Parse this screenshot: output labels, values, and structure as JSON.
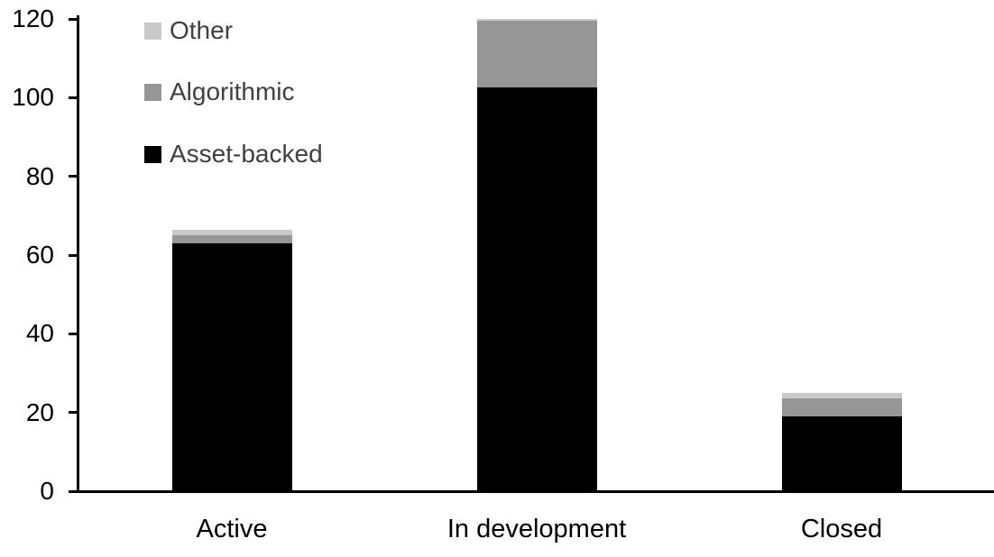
{
  "chart_data": {
    "type": "bar",
    "stacked": true,
    "categories": [
      "Active",
      "In development",
      "Closed"
    ],
    "series": [
      {
        "name": "Asset-backed",
        "color": "#000000",
        "values": [
          63,
          102.5,
          19
        ]
      },
      {
        "name": "Algorithmic",
        "color": "#969696",
        "values": [
          2,
          17,
          4.5
        ]
      },
      {
        "name": "Other",
        "color": "#c9c9c9",
        "values": [
          1.5,
          0.5,
          1.5
        ]
      }
    ],
    "title": "",
    "xlabel": "",
    "ylabel": "",
    "ylim": [
      0,
      120
    ],
    "yticks": [
      0,
      20,
      40,
      60,
      80,
      100,
      120
    ],
    "grid": false,
    "legend_position": "top-left",
    "legend_order_top_to_bottom": [
      "Other",
      "Algorithmic",
      "Asset-backed"
    ]
  },
  "legend": {
    "items": [
      {
        "label": "Other",
        "swatch_color": "#c9c9c9"
      },
      {
        "label": "Algorithmic",
        "swatch_color": "#969696"
      },
      {
        "label": "Asset-backed",
        "swatch_color": "#000000"
      }
    ]
  },
  "colors": {
    "background": "#ffffff",
    "axis": "#000000",
    "axis_text": "#000000",
    "legend_text": "#404040"
  }
}
